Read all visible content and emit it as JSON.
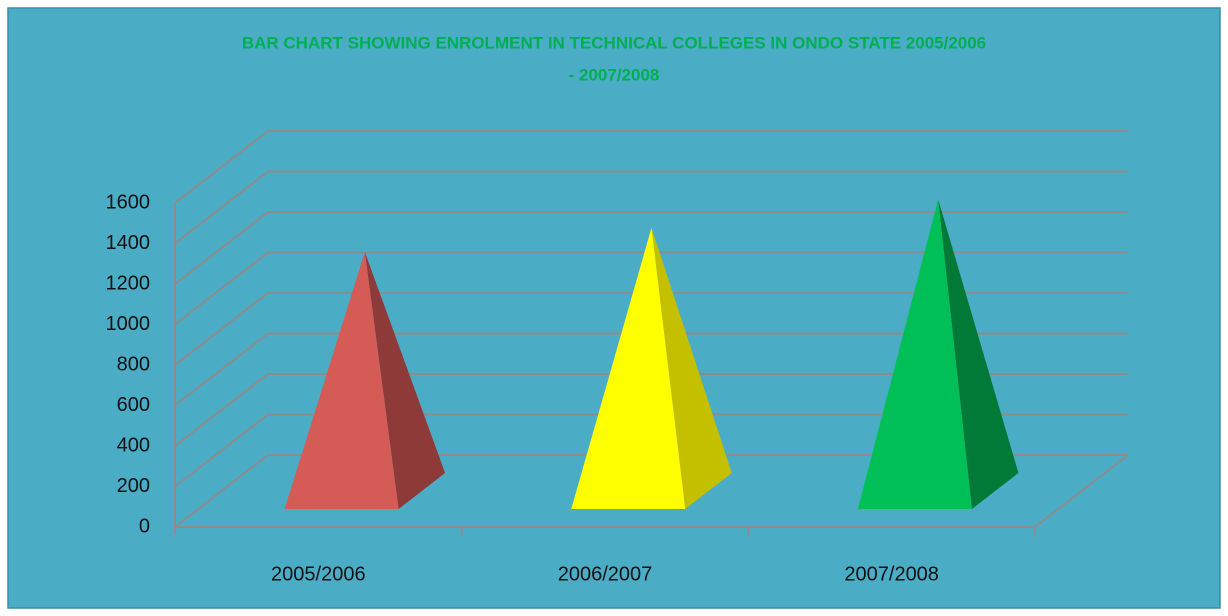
{
  "chart_data": {
    "type": "pyramid3d",
    "title": [
      "BAR CHART SHOWING ENROLMENT IN TECHNICAL COLLEGES IN ONDO STATE 2005/2006",
      "- 2007/2008"
    ],
    "categories": [
      "2005/2006",
      "2006/2007",
      "2007/2008"
    ],
    "values": [
      1180,
      1300,
      1440
    ],
    "colors": [
      "#D55B57",
      "#FFFF00",
      "#00BF56"
    ],
    "side_colors": [
      "#8E3A38",
      "#C4C000",
      "#007A36"
    ],
    "ylim": [
      0,
      1600
    ],
    "yticks": [
      0,
      200,
      400,
      600,
      800,
      1000,
      1200,
      1400,
      1600
    ],
    "grid": true
  }
}
